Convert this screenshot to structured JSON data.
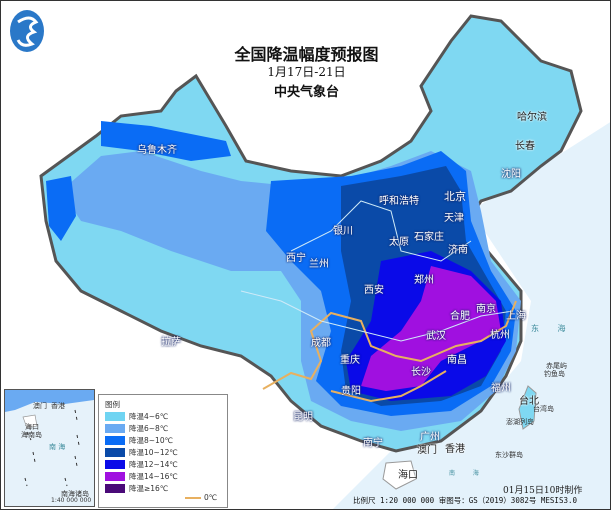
{
  "title": "全国降温幅度预报图",
  "date_range": "1月17日-21日",
  "agency": "中央气象台",
  "legend": {
    "title": "图例",
    "items": [
      {
        "label": "降温4~6℃",
        "color": "#6fd4f2"
      },
      {
        "label": "降温6~8℃",
        "color": "#6aaaf2"
      },
      {
        "label": "降温8~10℃",
        "color": "#0a6cf5"
      },
      {
        "label": "降温10~12℃",
        "color": "#0a4aa8"
      },
      {
        "label": "降温12~14℃",
        "color": "#0a0ae8"
      },
      {
        "label": "降温14~16℃",
        "color": "#a010e0"
      },
      {
        "label": "降温≥16℃",
        "color": "#4a0a78"
      }
    ],
    "zero_line_label": "0℃",
    "zero_line_color": "#e8b060"
  },
  "cities": [
    "乌鲁木齐",
    "哈尔滨",
    "长春",
    "沈阳",
    "呼和浩特",
    "北京",
    "天津",
    "银川",
    "太原",
    "石家庄",
    "济南",
    "西宁",
    "兰州",
    "郑州",
    "西安",
    "合肥",
    "南京",
    "上海",
    "武汉",
    "杭州",
    "成都",
    "重庆",
    "长沙",
    "南昌",
    "拉萨",
    "贵阳",
    "福州",
    "台北",
    "昆明",
    "南宁",
    "广州",
    "澳门",
    "香港",
    "海口"
  ],
  "islands": [
    "钓鱼岛",
    "赤尾屿",
    "台湾岛",
    "澎湖列岛",
    "东沙群岛"
  ],
  "seas": {
    "east": "东 海",
    "south": "南 海"
  },
  "inset": {
    "hainan": "海南岛",
    "south_sea": "南 海",
    "islands": "南海诸岛",
    "scale": "1:40 000 000",
    "haikou": "海口",
    "macau": "澳门",
    "hongkong": "香港"
  },
  "made_time": "01月15日10时制作",
  "footer": "比例尺 1:20 000 000  审图号：GS（2019）3082号 MESIS3.0"
}
